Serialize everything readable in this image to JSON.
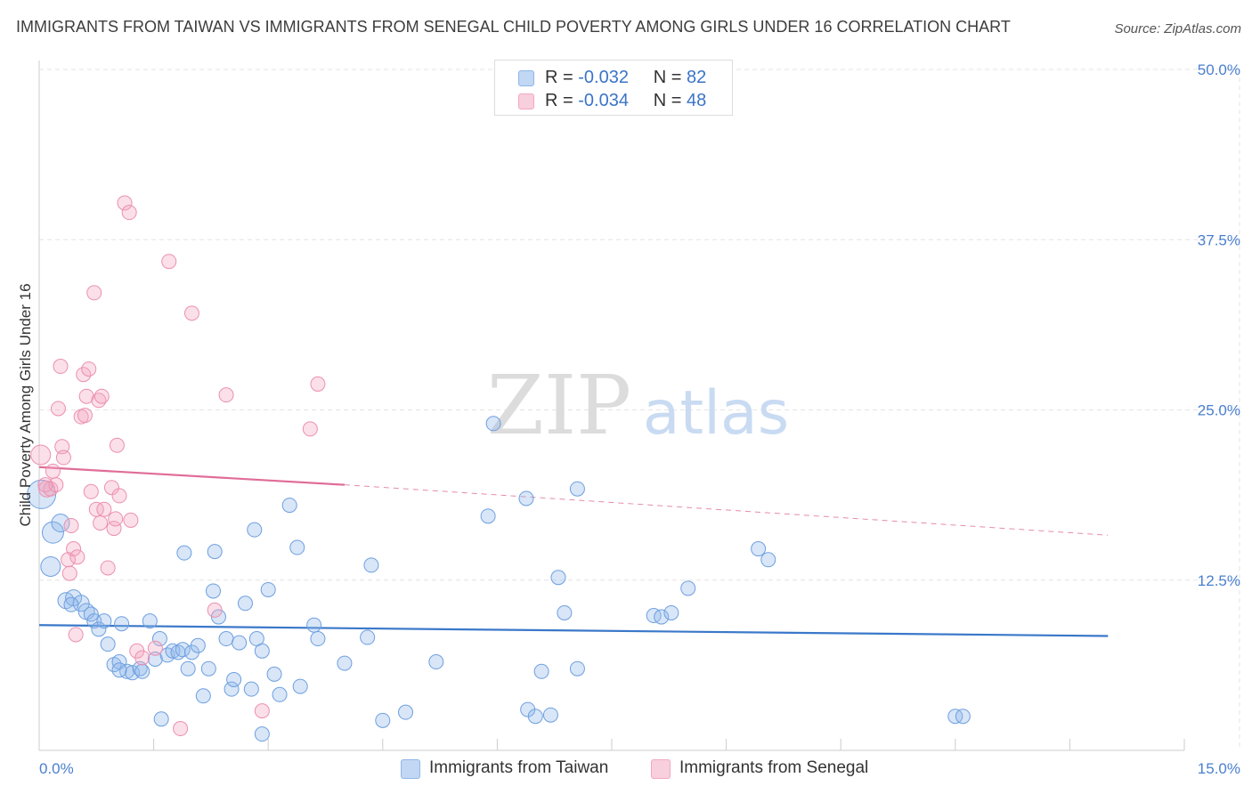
{
  "header": {
    "title": "IMMIGRANTS FROM TAIWAN VS IMMIGRANTS FROM SENEGAL CHILD POVERTY AMONG GIRLS UNDER 16 CORRELATION CHART",
    "source": "Source: ZipAtlas.com"
  },
  "watermark": "ZIPatlas",
  "stats": [
    {
      "r_label": "R =",
      "r_value": "-0.032",
      "n_label": "N =",
      "n_value": "82",
      "color": "#8fb6ea"
    },
    {
      "r_label": "R =",
      "r_value": "-0.034",
      "n_label": "N =",
      "n_value": "48",
      "color": "#f3a7c0"
    }
  ],
  "legend": [
    {
      "label": "Immigrants from Taiwan",
      "color": "#8fb6ea"
    },
    {
      "label": "Immigrants from Senegal",
      "color": "#f3a7c0"
    }
  ],
  "chart_data": {
    "type": "scatter",
    "title": "IMMIGRANTS FROM TAIWAN VS IMMIGRANTS FROM SENEGAL CHILD POVERTY AMONG GIRLS UNDER 16 CORRELATION CHART",
    "xlabel": "",
    "ylabel": "Child Poverty Among Girls Under 16",
    "xlim": [
      0,
      15
    ],
    "ylim": [
      0,
      50
    ],
    "x_tick_labels": [
      "0.0%",
      "15.0%"
    ],
    "y_ticks": [
      12.5,
      25,
      37.5,
      50
    ],
    "y_tick_labels": [
      "12.5%",
      "25.0%",
      "37.5%",
      "50.0%"
    ],
    "grid": true,
    "legend_position": "bottom",
    "series": [
      {
        "name": "Immigrants from Taiwan",
        "color": "#8fb6ea",
        "trend": {
          "x": [
            0,
            14.0
          ],
          "y": [
            9.2,
            8.4
          ],
          "style": "solid",
          "color": "#3a78c9"
        },
        "points": [
          [
            0.03,
            18.8,
            16
          ],
          [
            0.18,
            16.0,
            12
          ],
          [
            0.28,
            16.7,
            10
          ],
          [
            0.15,
            13.5,
            11
          ],
          [
            0.35,
            11.0,
            9
          ],
          [
            0.45,
            11.2,
            9
          ],
          [
            0.55,
            10.8,
            9
          ],
          [
            0.42,
            10.7,
            8
          ],
          [
            0.62,
            10.2,
            9
          ],
          [
            0.68,
            10.0,
            8
          ],
          [
            0.72,
            9.5,
            8
          ],
          [
            0.78,
            8.9,
            8
          ],
          [
            0.85,
            9.5,
            8
          ],
          [
            1.08,
            9.3,
            8
          ],
          [
            1.45,
            9.5,
            8
          ],
          [
            0.9,
            7.8,
            8
          ],
          [
            0.98,
            6.3,
            8
          ],
          [
            1.05,
            6.5,
            8
          ],
          [
            1.15,
            5.8,
            8
          ],
          [
            1.22,
            5.7,
            8
          ],
          [
            1.32,
            6.0,
            8
          ],
          [
            1.35,
            5.8,
            8
          ],
          [
            1.52,
            6.7,
            8
          ],
          [
            1.58,
            8.2,
            8
          ],
          [
            1.68,
            7.0,
            8
          ],
          [
            1.75,
            7.3,
            8
          ],
          [
            1.82,
            7.2,
            8
          ],
          [
            1.88,
            7.4,
            8
          ],
          [
            1.95,
            6.0,
            8
          ],
          [
            2.0,
            7.2,
            8
          ],
          [
            2.08,
            7.7,
            8
          ],
          [
            2.15,
            4.0,
            8
          ],
          [
            2.22,
            6.0,
            8
          ],
          [
            2.28,
            11.7,
            8
          ],
          [
            2.35,
            9.8,
            8
          ],
          [
            2.45,
            8.2,
            8
          ],
          [
            2.52,
            4.5,
            8
          ],
          [
            2.55,
            5.2,
            8
          ],
          [
            2.62,
            7.9,
            8
          ],
          [
            2.7,
            10.8,
            8
          ],
          [
            2.78,
            4.5,
            8
          ],
          [
            2.85,
            8.2,
            8
          ],
          [
            2.92,
            7.3,
            8
          ],
          [
            1.6,
            2.3,
            8
          ],
          [
            2.92,
            1.2,
            8
          ],
          [
            3.08,
            5.6,
            8
          ],
          [
            3.15,
            4.1,
            8
          ],
          [
            3.0,
            11.8,
            8
          ],
          [
            2.82,
            16.2,
            8
          ],
          [
            3.28,
            18.0,
            8
          ],
          [
            3.42,
            4.7,
            8
          ],
          [
            3.38,
            14.9,
            8
          ],
          [
            3.6,
            9.2,
            8
          ],
          [
            3.65,
            8.2,
            8
          ],
          [
            4.0,
            6.4,
            8
          ],
          [
            4.3,
            8.3,
            8
          ],
          [
            4.5,
            2.2,
            8
          ],
          [
            4.35,
            13.6,
            8
          ],
          [
            4.8,
            2.8,
            8
          ],
          [
            5.2,
            6.5,
            8
          ],
          [
            5.88,
            17.2,
            8
          ],
          [
            5.95,
            24.0,
            8
          ],
          [
            6.38,
            18.5,
            8
          ],
          [
            6.4,
            3.0,
            8
          ],
          [
            6.5,
            2.5,
            8
          ],
          [
            6.58,
            5.8,
            8
          ],
          [
            6.7,
            2.6,
            8
          ],
          [
            6.8,
            12.7,
            8
          ],
          [
            6.88,
            10.1,
            8
          ],
          [
            7.05,
            6.0,
            8
          ],
          [
            7.05,
            19.2,
            8
          ],
          [
            8.05,
            9.9,
            8
          ],
          [
            8.15,
            9.8,
            8
          ],
          [
            8.28,
            10.1,
            8
          ],
          [
            8.5,
            11.9,
            8
          ],
          [
            9.42,
            14.8,
            8
          ],
          [
            9.55,
            14.0,
            8
          ],
          [
            12.0,
            2.5,
            8
          ],
          [
            12.1,
            2.5,
            8
          ],
          [
            1.9,
            14.5,
            8
          ],
          [
            2.3,
            14.6,
            8
          ],
          [
            1.05,
            5.9,
            8
          ]
        ]
      },
      {
        "name": "Immigrants from Senegal",
        "color": "#f3a7c0",
        "trend": {
          "x": [
            0,
            4.0,
            14.0
          ],
          "y": [
            20.8,
            19.5,
            15.8
          ],
          "style": "solid-then-dashed",
          "color": "#e06d98"
        },
        "points": [
          [
            0.02,
            21.7,
            11
          ],
          [
            0.1,
            19.2,
            9
          ],
          [
            0.15,
            19.2,
            8
          ],
          [
            0.18,
            20.5,
            8
          ],
          [
            0.22,
            19.5,
            8
          ],
          [
            0.25,
            25.1,
            8
          ],
          [
            0.28,
            28.2,
            8
          ],
          [
            0.3,
            22.3,
            8
          ],
          [
            0.32,
            21.5,
            8
          ],
          [
            0.38,
            14.0,
            8
          ],
          [
            0.4,
            13.0,
            8
          ],
          [
            0.42,
            16.5,
            8
          ],
          [
            0.45,
            14.8,
            8
          ],
          [
            0.5,
            14.2,
            8
          ],
          [
            0.55,
            24.5,
            8
          ],
          [
            0.58,
            27.6,
            8
          ],
          [
            0.6,
            24.6,
            8
          ],
          [
            0.62,
            26.0,
            8
          ],
          [
            0.65,
            28.0,
            8
          ],
          [
            0.68,
            19.0,
            8
          ],
          [
            0.72,
            33.6,
            8
          ],
          [
            0.75,
            17.7,
            8
          ],
          [
            0.78,
            25.7,
            8
          ],
          [
            0.8,
            16.7,
            8
          ],
          [
            0.82,
            26.0,
            8
          ],
          [
            0.85,
            17.7,
            8
          ],
          [
            0.9,
            13.4,
            8
          ],
          [
            0.95,
            19.3,
            8
          ],
          [
            0.98,
            16.3,
            8
          ],
          [
            1.0,
            17.0,
            8
          ],
          [
            1.02,
            22.4,
            8
          ],
          [
            1.05,
            18.7,
            8
          ],
          [
            1.12,
            40.2,
            8
          ],
          [
            1.18,
            39.5,
            8
          ],
          [
            1.2,
            16.9,
            8
          ],
          [
            1.28,
            7.3,
            8
          ],
          [
            1.35,
            6.8,
            8
          ],
          [
            1.52,
            7.5,
            8
          ],
          [
            1.7,
            35.9,
            8
          ],
          [
            1.85,
            1.6,
            8
          ],
          [
            2.0,
            32.1,
            8
          ],
          [
            2.3,
            10.3,
            8
          ],
          [
            2.45,
            26.1,
            8
          ],
          [
            2.92,
            2.9,
            8
          ],
          [
            3.55,
            23.6,
            8
          ],
          [
            3.65,
            26.9,
            8
          ],
          [
            0.48,
            8.5,
            8
          ],
          [
            0.08,
            19.5,
            8
          ]
        ]
      }
    ]
  }
}
